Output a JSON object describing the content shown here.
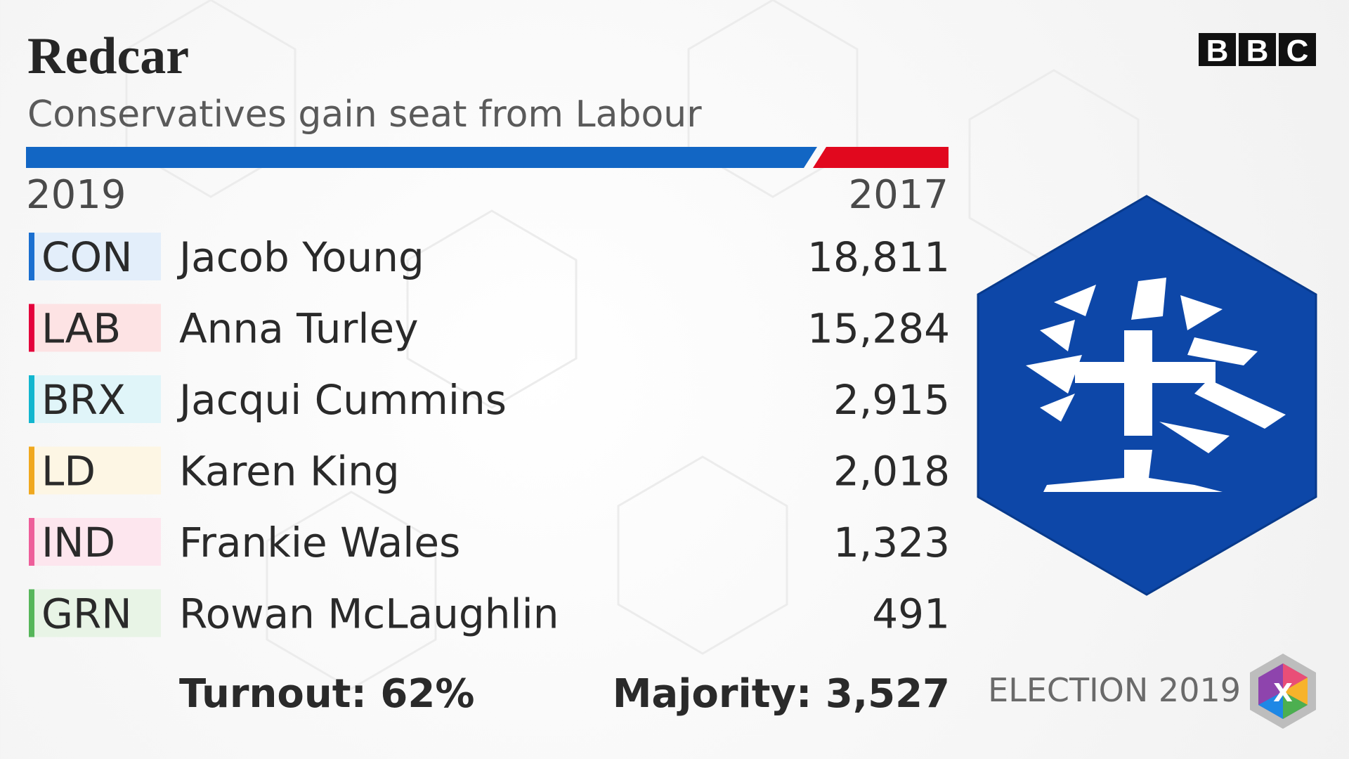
{
  "header": {
    "title": "Redcar",
    "subtitle": "Conservatives gain seat from Labour",
    "logo": [
      "B",
      "B",
      "C"
    ]
  },
  "bar": {
    "left_label": "2019",
    "right_label": "2017",
    "left_color": "#1266c4",
    "right_color": "#e1081e"
  },
  "table": {
    "rows": [
      {
        "party": "CON",
        "color": "#1a6fd0",
        "tint": "#e3eefa",
        "candidate": "Jacob Young",
        "votes": "18,811"
      },
      {
        "party": "LAB",
        "color": "#e4003b",
        "tint": "#fde3e4",
        "candidate": "Anna Turley",
        "votes": "15,284"
      },
      {
        "party": "BRX",
        "color": "#12b6cf",
        "tint": "#e0f5f9",
        "candidate": "Jacqui Cummins",
        "votes": "2,915"
      },
      {
        "party": "LD",
        "color": "#f0a81e",
        "tint": "#fdf6e4",
        "candidate": "Karen King",
        "votes": "2,018"
      },
      {
        "party": "IND",
        "color": "#ee5e9a",
        "tint": "#fde6ee",
        "candidate": "Frankie Wales",
        "votes": "1,323"
      },
      {
        "party": "GRN",
        "color": "#56b65a",
        "tint": "#e8f4e6",
        "candidate": "Rowan McLaughlin",
        "votes": "491"
      }
    ]
  },
  "footer": {
    "turnout": "Turnout: 62%",
    "majority": "Majority: 3,527",
    "election": "ELECTION 2019",
    "badge": "X"
  }
}
